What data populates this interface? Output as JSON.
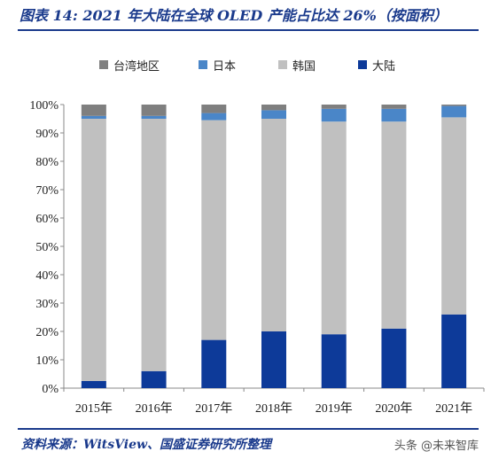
{
  "figure": {
    "title": "图表 14:  2021 年大陆在全球 OLED 产能占比达 26%（按面积）",
    "source": "资料来源：WitsView、国盛证券研究所整理",
    "watermark": "头条 @未来智库"
  },
  "chart_data": {
    "type": "bar",
    "stacked": true,
    "categories": [
      "2015年",
      "2016年",
      "2017年",
      "2018年",
      "2019年",
      "2020年",
      "2021年"
    ],
    "series": [
      {
        "name": "大陆",
        "color": "#0d3a99",
        "values": [
          2.5,
          6,
          17,
          20,
          19,
          21,
          26
        ]
      },
      {
        "name": "韩国",
        "color": "#c0c0c0",
        "values": [
          92.5,
          89,
          77.5,
          75,
          75,
          73,
          69.5
        ]
      },
      {
        "name": "日本",
        "color": "#4a86c8",
        "values": [
          1,
          1,
          2.5,
          3,
          4.5,
          4.5,
          4
        ]
      },
      {
        "name": "台湾地区",
        "color": "#7f7f7f",
        "values": [
          4,
          4,
          3,
          2,
          1.5,
          1.5,
          0.5
        ]
      }
    ],
    "legend_order": [
      "台湾地区",
      "日本",
      "韩国",
      "大陆"
    ],
    "y_ticks": [
      "0%",
      "10%",
      "20%",
      "30%",
      "40%",
      "50%",
      "60%",
      "70%",
      "80%",
      "90%",
      "100%"
    ],
    "ylim": [
      0,
      100
    ],
    "grid": false,
    "legend_position": "top"
  }
}
